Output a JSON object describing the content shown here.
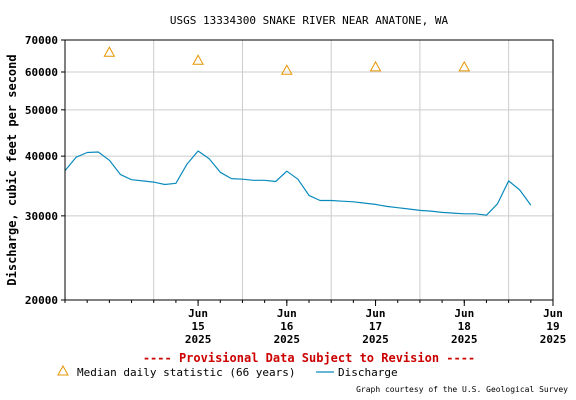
{
  "chart_data": {
    "type": "line",
    "title": "USGS 13334300 SNAKE RIVER NEAR ANATONE, WA",
    "ylabel": "Discharge, cubic feet per second",
    "y_scale": "log",
    "ylim": [
      20000,
      70000
    ],
    "y_ticks": [
      {
        "value": 20000,
        "label": "20000"
      },
      {
        "value": 30000,
        "label": "30000"
      },
      {
        "value": 40000,
        "label": "40000"
      },
      {
        "value": 50000,
        "label": "50000"
      },
      {
        "value": 60000,
        "label": "60000"
      },
      {
        "value": 70000,
        "label": "70000"
      }
    ],
    "xlim": [
      "2025-06-14 00:00",
      "2025-06-19 12:00"
    ],
    "x_ticks": [
      {
        "value": "2025-06-15 00:00",
        "month": "Jun",
        "day": "15",
        "year": "2025"
      },
      {
        "value": "2025-06-16 00:00",
        "month": "Jun",
        "day": "16",
        "year": "2025"
      },
      {
        "value": "2025-06-17 00:00",
        "month": "Jun",
        "day": "17",
        "year": "2025"
      },
      {
        "value": "2025-06-18 00:00",
        "month": "Jun",
        "day": "18",
        "year": "2025"
      },
      {
        "value": "2025-06-19 00:00",
        "month": "Jun",
        "day": "19",
        "year": "2025"
      }
    ],
    "grid": true,
    "series": [
      {
        "name": "Median daily statistic (66 years)",
        "marker": "triangle",
        "color": "#e69500",
        "x": [
          "2025-06-14 12:00",
          "2025-06-15 12:00",
          "2025-06-16 12:00",
          "2025-06-17 12:00",
          "2025-06-18 12:00"
        ],
        "y": [
          66000,
          63500,
          60500,
          61500,
          61500
        ]
      },
      {
        "name": "Discharge",
        "marker": "line",
        "color": "#0a8bbd",
        "x": [
          "2025-06-14 00:00",
          "2025-06-14 03:00",
          "2025-06-14 06:00",
          "2025-06-14 09:00",
          "2025-06-14 12:00",
          "2025-06-14 15:00",
          "2025-06-14 18:00",
          "2025-06-14 21:00",
          "2025-06-15 00:00",
          "2025-06-15 03:00",
          "2025-06-15 06:00",
          "2025-06-15 09:00",
          "2025-06-15 12:00",
          "2025-06-15 15:00",
          "2025-06-15 18:00",
          "2025-06-15 21:00",
          "2025-06-16 00:00",
          "2025-06-16 03:00",
          "2025-06-16 06:00",
          "2025-06-16 09:00",
          "2025-06-16 12:00",
          "2025-06-16 15:00",
          "2025-06-16 18:00",
          "2025-06-16 21:00",
          "2025-06-17 00:00",
          "2025-06-17 03:00",
          "2025-06-17 06:00",
          "2025-06-17 09:00",
          "2025-06-17 12:00",
          "2025-06-17 15:00",
          "2025-06-17 18:00",
          "2025-06-17 21:00",
          "2025-06-18 00:00",
          "2025-06-18 03:00",
          "2025-06-18 06:00",
          "2025-06-18 09:00",
          "2025-06-18 12:00",
          "2025-06-18 15:00",
          "2025-06-18 18:00",
          "2025-06-18 21:00",
          "2025-06-19 00:00",
          "2025-06-19 03:00",
          "2025-06-19 06:00"
        ],
        "y": [
          37300,
          39800,
          40700,
          40800,
          39200,
          36600,
          35700,
          35500,
          35300,
          34900,
          35100,
          38500,
          41000,
          39500,
          37000,
          35900,
          35800,
          35600,
          35600,
          35400,
          37200,
          35800,
          33100,
          32300,
          32300,
          32200,
          32100,
          31900,
          31700,
          31400,
          31200,
          31000,
          30800,
          30700,
          30500,
          30400,
          30300,
          30300,
          30100,
          31800,
          35500,
          34000,
          31600
        ]
      }
    ],
    "provisional_note": "---- Provisional Data Subject to Revision ----",
    "credit": "Graph courtesy of the U.S. Geological Survey"
  },
  "colors": {
    "background": "#ffffff",
    "frame": "#000000",
    "grid": "#cccccc",
    "provisional": "#cc0000",
    "text": "#000000"
  }
}
